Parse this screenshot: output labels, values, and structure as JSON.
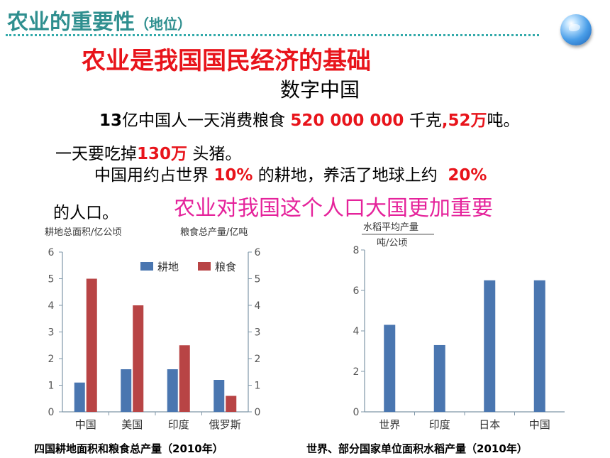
{
  "title": {
    "main": "农业的重要性",
    "sub": "（地位）"
  },
  "headline": "农业是我国国民经济的基础",
  "digital_china": "数字中国",
  "facts": {
    "l1_a": "13",
    "l1_b": "亿中国人一天消费粮食",
    "l1_num": "520 000 000",
    "l1_c": "千克",
    "l1_num2": "52",
    "l1_d": "万",
    "l1_e": "吨。",
    "l2_a": "一天要吃掉",
    "l2_num": "130",
    "l2_b": "万",
    "l2_c": "头猪。",
    "l3_a": "中国用约占世界",
    "l3_num": "10%",
    "l3_b": "的耕地，养活了地球上约",
    "l3_num2": "20%",
    "l4": "的人口。"
  },
  "emphasis": "农业对我国这个人口大国更加重要",
  "colors": {
    "title": "#2f8f8f",
    "red": "#e8141b",
    "pink": "#e5239b",
    "land_bar": "#4a76b0",
    "grain_bar": "#b84445"
  },
  "captions": {
    "chart1": "四国耕地面积和粮食总产量（2010年）",
    "chart2": "世界、部分国家单位面积水稻产量（2010年）"
  },
  "chart_data": [
    {
      "type": "bar",
      "categories": [
        "中国",
        "美国",
        "印度",
        "俄罗斯"
      ],
      "series": [
        {
          "name": "耕地",
          "values": [
            1.1,
            1.6,
            1.6,
            1.2
          ]
        },
        {
          "name": "粮食",
          "values": [
            5.0,
            4.0,
            2.5,
            0.6
          ]
        }
      ],
      "ylabel_left": "耕地总面积/亿公顷",
      "ylabel_right": "粮食总产量/亿吨",
      "ylim": [
        0,
        6
      ],
      "yticks": [
        "0",
        "1",
        "2",
        "3",
        "4",
        "5",
        "6"
      ],
      "legend": "top-right"
    },
    {
      "type": "bar",
      "categories": [
        "世界",
        "印度",
        "日本",
        "中国"
      ],
      "values": [
        4.3,
        3.3,
        6.5,
        6.5
      ],
      "ylabel_top": "水稻平均产量",
      "ylabel_bottom": "吨/公顷",
      "ylim": [
        0,
        8
      ],
      "yticks": [
        "0",
        "2",
        "4",
        "6",
        "8"
      ]
    }
  ]
}
